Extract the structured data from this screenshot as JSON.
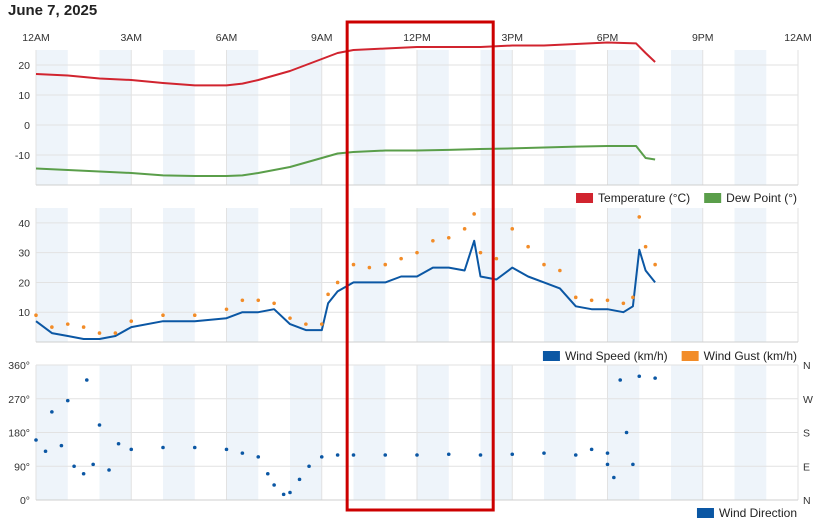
{
  "page": {
    "title": "June 7, 2025"
  },
  "time_axis": {
    "unit": "hours since 00:00",
    "ticks": [
      {
        "h": 0,
        "label": "12AM"
      },
      {
        "h": 3,
        "label": "3AM"
      },
      {
        "h": 6,
        "label": "6AM"
      },
      {
        "h": 9,
        "label": "9AM"
      },
      {
        "h": 12,
        "label": "12PM"
      },
      {
        "h": 15,
        "label": "3PM"
      },
      {
        "h": 18,
        "label": "6PM"
      },
      {
        "h": 21,
        "label": "9PM"
      },
      {
        "h": 24,
        "label": "12AM"
      }
    ]
  },
  "highlight": {
    "from_h": 9.8,
    "to_h": 14.4,
    "color": "#cc0000"
  },
  "colors": {
    "temperature": "#d1242f",
    "dew_point": "#5a9e4a",
    "wind_speed": "#0b57a4",
    "wind_gust": "#f28c28",
    "wind_direction": "#0b57a4",
    "band": "#eef4fa",
    "grid": "#e2e2e2",
    "axis_text": "#333333"
  },
  "chart_data": [
    {
      "type": "line",
      "ylim": [
        -20,
        25
      ],
      "yticks": [
        -10,
        0,
        10,
        20
      ],
      "legend": "bottom-right",
      "series": [
        {
          "name": "Temperature (°C)",
          "color": "#d1242f",
          "points": [
            [
              0,
              17
            ],
            [
              1,
              16.5
            ],
            [
              2,
              15.5
            ],
            [
              3,
              15
            ],
            [
              4,
              14
            ],
            [
              5,
              13.2
            ],
            [
              6,
              13.2
            ],
            [
              6.5,
              13.8
            ],
            [
              7,
              15
            ],
            [
              8,
              18
            ],
            [
              9,
              22
            ],
            [
              9.5,
              24
            ],
            [
              10,
              25
            ],
            [
              11,
              25.5
            ],
            [
              12,
              26
            ],
            [
              13,
              26
            ],
            [
              14,
              26
            ],
            [
              15,
              26.5
            ],
            [
              16,
              26.5
            ],
            [
              17,
              27
            ],
            [
              18,
              27.5
            ],
            [
              18.9,
              27.2
            ],
            [
              19.2,
              24
            ],
            [
              19.5,
              21
            ]
          ]
        },
        {
          "name": "Dew Point (°)",
          "color": "#5a9e4a",
          "points": [
            [
              0,
              -14.5
            ],
            [
              1,
              -15
            ],
            [
              2,
              -15.5
            ],
            [
              3,
              -16
            ],
            [
              4,
              -16.8
            ],
            [
              5,
              -17
            ],
            [
              6,
              -17
            ],
            [
              6.5,
              -16.8
            ],
            [
              7,
              -16
            ],
            [
              8,
              -14
            ],
            [
              9,
              -11
            ],
            [
              9.5,
              -9.5
            ],
            [
              10,
              -9
            ],
            [
              11,
              -8.5
            ],
            [
              12,
              -8.5
            ],
            [
              13,
              -8.3
            ],
            [
              14,
              -8
            ],
            [
              15,
              -7.8
            ],
            [
              16,
              -7.5
            ],
            [
              17,
              -7.2
            ],
            [
              18,
              -7
            ],
            [
              18.9,
              -7
            ],
            [
              19.2,
              -11
            ],
            [
              19.5,
              -11.5
            ]
          ]
        }
      ]
    },
    {
      "type": "line",
      "ylim": [
        0,
        45
      ],
      "yticks": [
        10,
        20,
        30,
        40
      ],
      "legend": "bottom-right",
      "series": [
        {
          "name": "Wind Speed (km/h)",
          "color": "#0b57a4",
          "points": [
            [
              0,
              7
            ],
            [
              0.5,
              3
            ],
            [
              1,
              2
            ],
            [
              1.5,
              1
            ],
            [
              2,
              1
            ],
            [
              2.5,
              2
            ],
            [
              3,
              5
            ],
            [
              4,
              7
            ],
            [
              5,
              7
            ],
            [
              6,
              8
            ],
            [
              6.5,
              10
            ],
            [
              7,
              10
            ],
            [
              7.5,
              11
            ],
            [
              8,
              6
            ],
            [
              8.5,
              4
            ],
            [
              9,
              4
            ],
            [
              9.2,
              13
            ],
            [
              9.5,
              17
            ],
            [
              10,
              20
            ],
            [
              10.5,
              20
            ],
            [
              11,
              20
            ],
            [
              11.5,
              22
            ],
            [
              12,
              22
            ],
            [
              12.5,
              25
            ],
            [
              13,
              25
            ],
            [
              13.5,
              24
            ],
            [
              13.8,
              34
            ],
            [
              14,
              22
            ],
            [
              14.5,
              21
            ],
            [
              15,
              25
            ],
            [
              15.5,
              22
            ],
            [
              16,
              20
            ],
            [
              16.5,
              18
            ],
            [
              17,
              12
            ],
            [
              17.5,
              11
            ],
            [
              18,
              11
            ],
            [
              18.5,
              10
            ],
            [
              18.8,
              12
            ],
            [
              19,
              31
            ],
            [
              19.2,
              24
            ],
            [
              19.5,
              20
            ]
          ]
        },
        {
          "name": "Wind Gust (km/h)",
          "color": "#f28c28",
          "points": [
            [
              0,
              9
            ],
            [
              0.5,
              5
            ],
            [
              1,
              6
            ],
            [
              1.5,
              5
            ],
            [
              2,
              3
            ],
            [
              2.5,
              3
            ],
            [
              3,
              7
            ],
            [
              4,
              9
            ],
            [
              5,
              9
            ],
            [
              6,
              11
            ],
            [
              6.5,
              14
            ],
            [
              7,
              14
            ],
            [
              7.5,
              13
            ],
            [
              8,
              8
            ],
            [
              8.5,
              6
            ],
            [
              9,
              6
            ],
            [
              9.2,
              16
            ],
            [
              9.5,
              20
            ],
            [
              10,
              26
            ],
            [
              10.5,
              25
            ],
            [
              11,
              26
            ],
            [
              11.5,
              28
            ],
            [
              12,
              30
            ],
            [
              12.5,
              34
            ],
            [
              13,
              35
            ],
            [
              13.5,
              38
            ],
            [
              13.8,
              43
            ],
            [
              14,
              30
            ],
            [
              14.5,
              28
            ],
            [
              15,
              38
            ],
            [
              15.5,
              32
            ],
            [
              16,
              26
            ],
            [
              16.5,
              24
            ],
            [
              17,
              15
            ],
            [
              17.5,
              14
            ],
            [
              18,
              14
            ],
            [
              18.5,
              13
            ],
            [
              18.8,
              15
            ],
            [
              19,
              42
            ],
            [
              19.2,
              32
            ],
            [
              19.5,
              26
            ]
          ]
        }
      ]
    },
    {
      "type": "scatter",
      "ylim": [
        0,
        360
      ],
      "yticks": [
        0,
        90,
        180,
        270,
        360
      ],
      "ytick_labels": [
        "0°",
        "90°",
        "180°",
        "270°",
        "360°"
      ],
      "yticks_right": [
        "N",
        "E",
        "S",
        "W",
        "N"
      ],
      "legend": "bottom-right",
      "series": [
        {
          "name": "Wind Direction",
          "color": "#0b57a4",
          "points": [
            [
              0,
              160
            ],
            [
              0.3,
              130
            ],
            [
              0.5,
              235
            ],
            [
              0.8,
              145
            ],
            [
              1,
              265
            ],
            [
              1.2,
              90
            ],
            [
              1.5,
              70
            ],
            [
              1.6,
              320
            ],
            [
              1.8,
              95
            ],
            [
              2,
              200
            ],
            [
              2.3,
              80
            ],
            [
              2.6,
              150
            ],
            [
              3,
              135
            ],
            [
              4,
              140
            ],
            [
              5,
              140
            ],
            [
              6,
              135
            ],
            [
              6.5,
              125
            ],
            [
              7,
              115
            ],
            [
              7.3,
              70
            ],
            [
              7.5,
              40
            ],
            [
              7.8,
              15
            ],
            [
              8,
              20
            ],
            [
              8.3,
              55
            ],
            [
              8.6,
              90
            ],
            [
              9,
              115
            ],
            [
              9.5,
              120
            ],
            [
              10,
              120
            ],
            [
              11,
              120
            ],
            [
              12,
              120
            ],
            [
              13,
              122
            ],
            [
              14,
              120
            ],
            [
              15,
              122
            ],
            [
              16,
              125
            ],
            [
              17,
              120
            ],
            [
              17.5,
              135
            ],
            [
              18,
              125
            ],
            [
              18,
              95
            ],
            [
              18.2,
              60
            ],
            [
              18.4,
              320
            ],
            [
              18.6,
              180
            ],
            [
              18.8,
              95
            ],
            [
              19,
              330
            ],
            [
              19.5,
              325
            ]
          ]
        }
      ]
    }
  ]
}
